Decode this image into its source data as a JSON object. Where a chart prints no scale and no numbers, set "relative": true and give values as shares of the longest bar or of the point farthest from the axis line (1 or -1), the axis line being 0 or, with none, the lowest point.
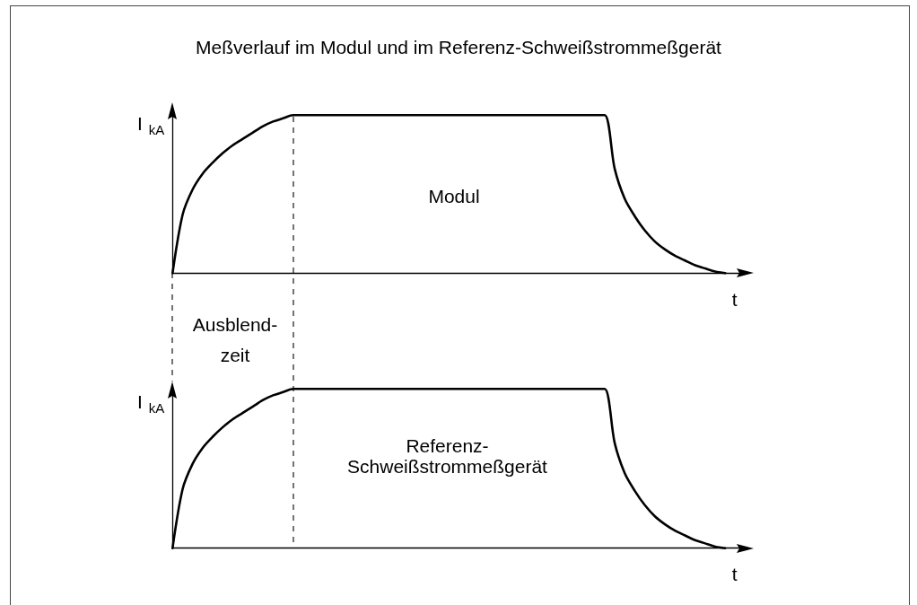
{
  "chart_data": [
    {
      "type": "line",
      "title": "Meßverlauf im Modul und im Referenz-Schweißstrommeßgerät",
      "xlabel": "t",
      "ylabel": "I$_{kA}$",
      "relative": true,
      "categories": [
        null,
        null,
        null,
        null,
        null,
        null,
        null,
        null,
        null,
        null,
        null,
        null,
        null,
        null,
        null,
        null,
        null,
        null,
        null,
        null,
        null,
        null,
        null,
        null,
        null,
        null,
        null,
        null,
        null,
        null,
        null,
        null,
        null,
        null,
        null,
        null,
        null,
        null,
        null,
        null,
        null,
        null,
        null,
        null,
        null,
        null,
        null,
        null,
        null,
        null,
        null,
        null,
        null,
        null,
        null,
        null,
        null,
        null
      ],
      "values": [
        0,
        0.37,
        0.53,
        0.63,
        0.7,
        0.76,
        0.81,
        0.85,
        0.89,
        0.93,
        0.96,
        0.98,
        1,
        1,
        1,
        1,
        1,
        1,
        1,
        1,
        1,
        1,
        1,
        1,
        1,
        1,
        1,
        1,
        1,
        1,
        1,
        1,
        1,
        1,
        1,
        1,
        1,
        1,
        1,
        1,
        1,
        1,
        1,
        1,
        0.66,
        0.47,
        0.36,
        0.27,
        0.2,
        0.15,
        0.11,
        0.08,
        0.05,
        0.03,
        0.01,
        0,
        null,
        null
      ],
      "color": "#000000",
      "annotations": [
        "Modul"
      ]
    },
    {
      "type": "line",
      "xlabel": "t",
      "ylabel": "I$_{kA}$",
      "relative": true,
      "categories": [
        null,
        null,
        null,
        null,
        null,
        null,
        null,
        null,
        null,
        null,
        null,
        null,
        null,
        null,
        null,
        null,
        null,
        null,
        null,
        null,
        null,
        null,
        null,
        null,
        null,
        null,
        null,
        null,
        null,
        null,
        null,
        null,
        null,
        null,
        null,
        null,
        null,
        null,
        null,
        null,
        null,
        null,
        null,
        null,
        null,
        null,
        null,
        null,
        null,
        null,
        null,
        null,
        null,
        null,
        null,
        null,
        null,
        null
      ],
      "values": [
        0,
        0.37,
        0.53,
        0.63,
        0.7,
        0.76,
        0.81,
        0.85,
        0.89,
        0.93,
        0.96,
        0.98,
        1,
        1,
        1,
        1,
        1,
        1,
        1,
        1,
        1,
        1,
        1,
        1,
        1,
        1,
        1,
        1,
        1,
        1,
        1,
        1,
        1,
        1,
        1,
        1,
        1,
        1,
        1,
        1,
        1,
        1,
        1,
        1,
        0.66,
        0.47,
        0.36,
        0.27,
        0.2,
        0.15,
        0.11,
        0.08,
        0.05,
        0.03,
        0.01,
        0,
        null,
        null
      ],
      "color": "#000000",
      "annotations": [
        "Ausblend-\nzeit",
        "Referenz-\nSchweißstrommeßgerät"
      ]
    }
  ]
}
